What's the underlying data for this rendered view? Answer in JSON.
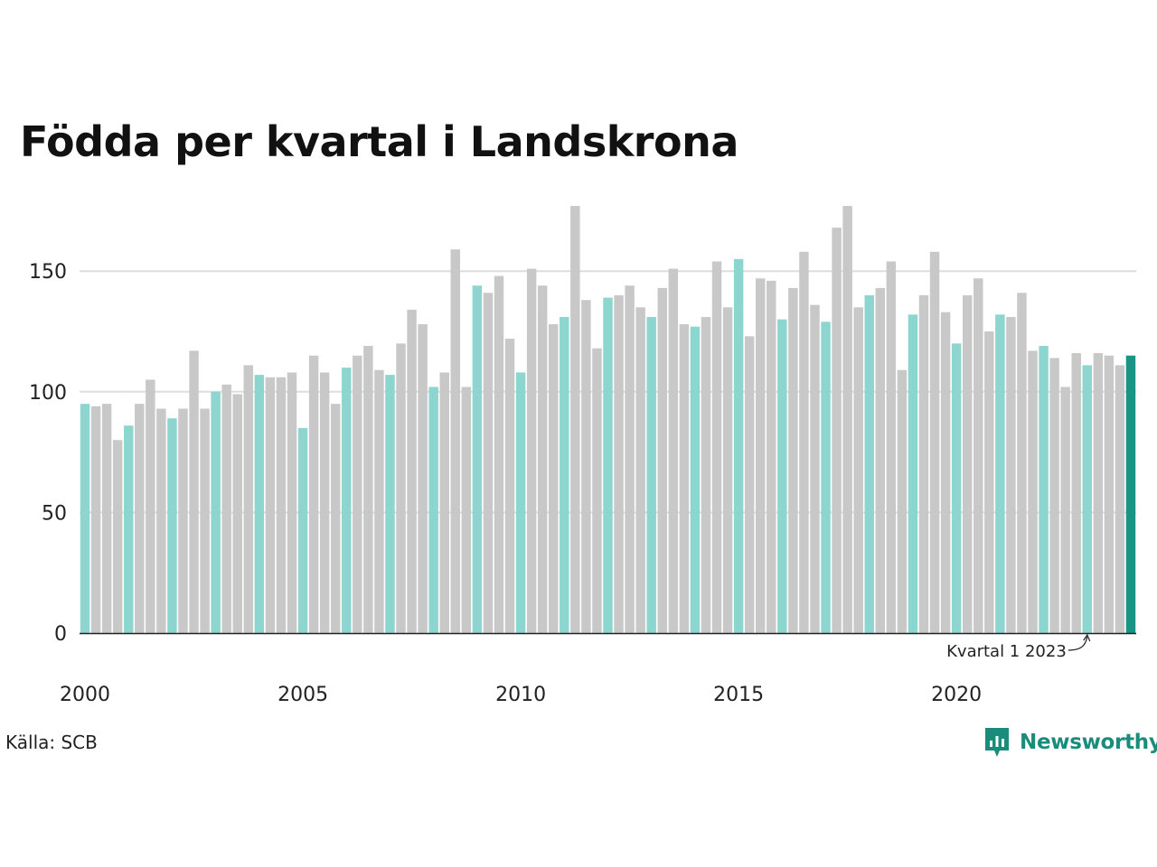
{
  "chart_data": {
    "type": "bar",
    "title": "Födda per kvartal i Landskrona",
    "xlabel": "",
    "ylabel": "",
    "ylim": [
      0,
      180
    ],
    "yticks": [
      0,
      50,
      100,
      150
    ],
    "grid": true,
    "x_tick_labels": [
      "2000",
      "2005",
      "2010",
      "2015",
      "2020"
    ],
    "categories": [
      "2000 Q1",
      "2000 Q2",
      "2000 Q3",
      "2000 Q4",
      "2001 Q1",
      "2001 Q2",
      "2001 Q3",
      "2001 Q4",
      "2002 Q1",
      "2002 Q2",
      "2002 Q3",
      "2002 Q4",
      "2003 Q1",
      "2003 Q2",
      "2003 Q3",
      "2003 Q4",
      "2004 Q1",
      "2004 Q2",
      "2004 Q3",
      "2004 Q4",
      "2005 Q1",
      "2005 Q2",
      "2005 Q3",
      "2005 Q4",
      "2006 Q1",
      "2006 Q2",
      "2006 Q3",
      "2006 Q4",
      "2007 Q1",
      "2007 Q2",
      "2007 Q3",
      "2007 Q4",
      "2008 Q1",
      "2008 Q2",
      "2008 Q3",
      "2008 Q4",
      "2009 Q1",
      "2009 Q2",
      "2009 Q3",
      "2009 Q4",
      "2010 Q1",
      "2010 Q2",
      "2010 Q3",
      "2010 Q4",
      "2011 Q1",
      "2011 Q2",
      "2011 Q3",
      "2011 Q4",
      "2012 Q1",
      "2012 Q2",
      "2012 Q3",
      "2012 Q4",
      "2013 Q1",
      "2013 Q2",
      "2013 Q3",
      "2013 Q4",
      "2014 Q1",
      "2014 Q2",
      "2014 Q3",
      "2014 Q4",
      "2015 Q1",
      "2015 Q2",
      "2015 Q3",
      "2015 Q4",
      "2016 Q1",
      "2016 Q2",
      "2016 Q3",
      "2016 Q4",
      "2017 Q1",
      "2017 Q2",
      "2017 Q3",
      "2017 Q4",
      "2018 Q1",
      "2018 Q2",
      "2018 Q3",
      "2018 Q4",
      "2019 Q1",
      "2019 Q2",
      "2019 Q3",
      "2019 Q4",
      "2020 Q1",
      "2020 Q2",
      "2020 Q3",
      "2020 Q4",
      "2021 Q1",
      "2021 Q2",
      "2021 Q3",
      "2021 Q4",
      "2022 Q1",
      "2022 Q2",
      "2022 Q3",
      "2022 Q4",
      "2023 Q1",
      "2023 Q2",
      "2023 Q3",
      "2023 Q4",
      "2024 Q1"
    ],
    "values": [
      95,
      94,
      95,
      80,
      86,
      95,
      105,
      93,
      89,
      93,
      117,
      93,
      100,
      103,
      99,
      111,
      107,
      106,
      106,
      108,
      85,
      115,
      108,
      95,
      110,
      115,
      119,
      109,
      107,
      120,
      134,
      128,
      102,
      108,
      159,
      102,
      144,
      141,
      148,
      122,
      108,
      151,
      144,
      128,
      131,
      177,
      138,
      118,
      139,
      140,
      144,
      135,
      131,
      143,
      151,
      128,
      127,
      131,
      154,
      135,
      155,
      123,
      147,
      146,
      130,
      143,
      158,
      136,
      129,
      168,
      177,
      135,
      140,
      143,
      154,
      109,
      132,
      140,
      158,
      133,
      120,
      140,
      147,
      125,
      132,
      131,
      141,
      117,
      119,
      114,
      102,
      116,
      111,
      116,
      115,
      111,
      115
    ],
    "colors": {
      "q1": "#8dd5cf",
      "other": "#c8c8c8",
      "latest": "#1a9484",
      "grid": "#dddddd",
      "axis": "#222222"
    },
    "annotation": {
      "text": "Kvartal 1 2023",
      "target": "2023 Q1"
    }
  },
  "source": "Källa: SCB",
  "brand": {
    "name": "Newsworthy",
    "icon": "newsworthy-logo-icon",
    "color": "#1a8c7c"
  }
}
